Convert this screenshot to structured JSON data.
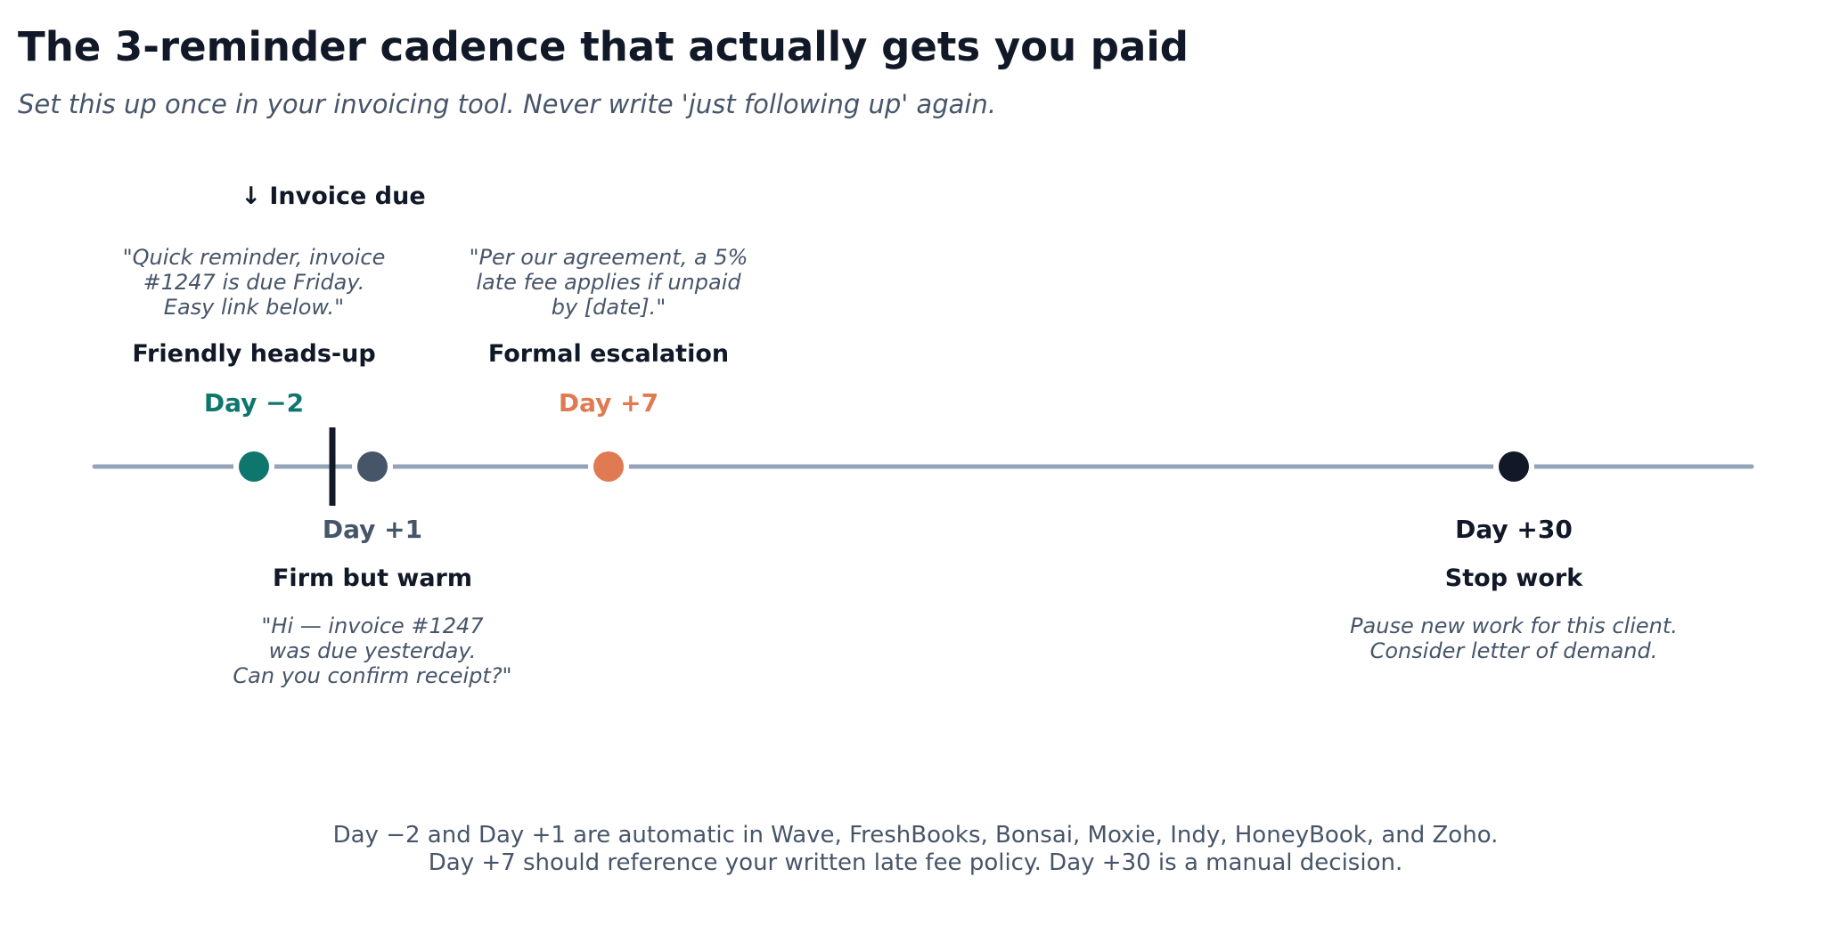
{
  "title": "The 3-reminder cadence that actually gets you paid",
  "subtitle": "Set this up once in your invoicing tool. Never write 'just following up' again.",
  "invoice_due_label": "↓ Invoice due",
  "steps": [
    {
      "day": "Day −2",
      "name": "Friendly heads-up",
      "quote_lines": [
        "\"Quick reminder, invoice",
        "#1247 is due Friday.",
        "Easy link below.\""
      ],
      "color": "#0f766e"
    },
    {
      "day": "Day +1",
      "name": "Firm but warm",
      "quote_lines": [
        "\"Hi — invoice #1247",
        "was due yesterday.",
        "Can you confirm receipt?\""
      ],
      "color": "#475569"
    },
    {
      "day": "Day +7",
      "name": "Formal escalation",
      "quote_lines": [
        "\"Per our agreement, a 5%",
        "late fee applies if unpaid",
        "by [date].\""
      ],
      "color": "#e07a52"
    },
    {
      "day": "Day +30",
      "name": "Stop work",
      "quote_lines": [
        "Pause new work for this client.",
        "Consider letter of demand."
      ],
      "color": "#111827"
    }
  ],
  "footer_lines": [
    "Day −2 and Day +1 are automatic in Wave, FreshBooks, Bonsai, Moxie, Indy, HoneyBook, and Zoho.",
    "Day +7 should reference your written late fee policy. Day +30 is a manual decision."
  ],
  "colors": {
    "axis": "#94a3b8",
    "due_marker": "#111827"
  }
}
